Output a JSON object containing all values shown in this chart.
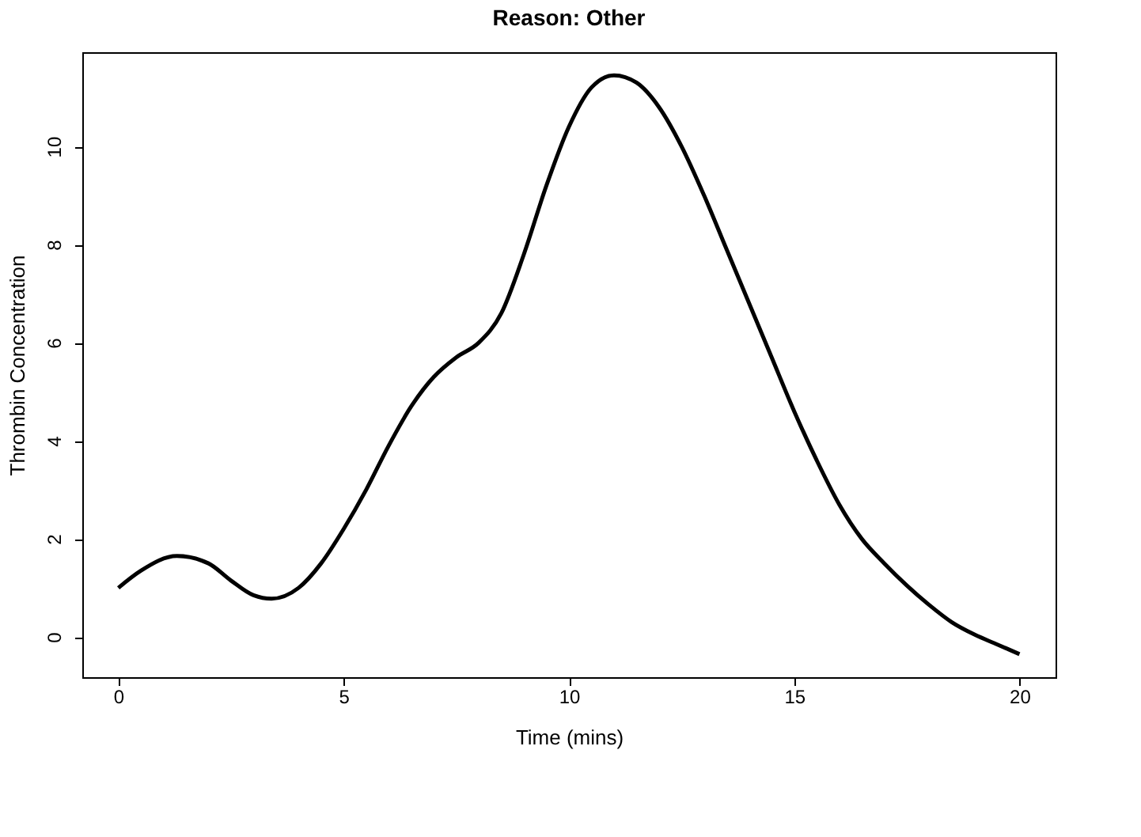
{
  "chart_data": {
    "type": "line",
    "title": "Reason: Other",
    "xlabel": "Time (mins)",
    "ylabel": "Thrombin Concentration",
    "x": [
      0,
      0.5,
      1.3,
      2,
      2.5,
      3,
      3.4,
      4,
      4.5,
      5,
      5.5,
      6,
      6.5,
      7,
      7.5,
      8,
      8.5,
      9,
      9.5,
      10,
      10.5,
      11,
      11.5,
      12,
      12.5,
      13,
      13.5,
      14,
      14.5,
      15,
      15.5,
      16,
      16.5,
      17,
      17.5,
      18,
      18.5,
      19,
      19.5,
      20
    ],
    "series": [
      {
        "color": "#000000",
        "values": [
          1.0,
          1.35,
          1.65,
          1.5,
          1.15,
          0.85,
          0.78,
          1.0,
          1.5,
          2.2,
          3.0,
          3.9,
          4.7,
          5.3,
          5.7,
          6.0,
          6.6,
          7.8,
          9.2,
          10.4,
          11.2,
          11.45,
          11.3,
          10.8,
          10.0,
          9.0,
          7.9,
          6.8,
          5.7,
          4.6,
          3.6,
          2.7,
          2.0,
          1.5,
          1.05,
          0.65,
          0.3,
          0.05,
          -0.15,
          -0.35
        ]
      }
    ],
    "xlim": [
      -0.8,
      20.8
    ],
    "ylim": [
      -0.82,
      11.92
    ],
    "xticks": [
      0,
      5,
      10,
      15,
      20
    ],
    "yticks": [
      0,
      2,
      4,
      6,
      8,
      10
    ],
    "grid": false,
    "marker": "none",
    "line_style": "solid"
  }
}
